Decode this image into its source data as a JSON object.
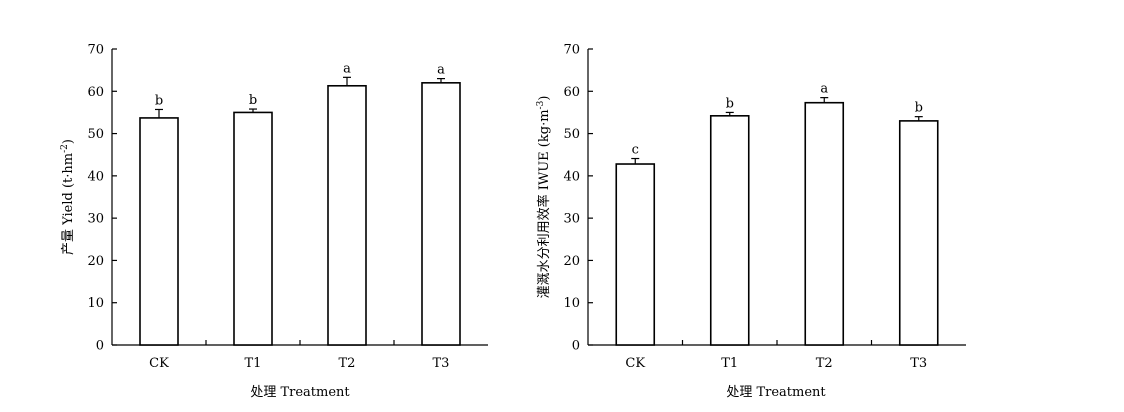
{
  "chart_data": [
    {
      "type": "bar",
      "categories": [
        "CK",
        "T1",
        "T2",
        "T3"
      ],
      "values": [
        53.7,
        55.0,
        61.3,
        62.0
      ],
      "errors": [
        2.0,
        0.8,
        2.0,
        1.0
      ],
      "significance": [
        "b",
        "b",
        "a",
        "a"
      ],
      "xlabel": "处理 Treatment",
      "ylabel": {
        "main": "产量 Yield (t·hm",
        "sup": "-2",
        "end": ")"
      },
      "ylim": [
        0,
        70
      ],
      "yticks": [
        0,
        10,
        20,
        30,
        40,
        50,
        60,
        70
      ],
      "grid": false
    },
    {
      "type": "bar",
      "categories": [
        "CK",
        "T1",
        "T2",
        "T3"
      ],
      "values": [
        42.8,
        54.2,
        57.3,
        53.0
      ],
      "errors": [
        1.3,
        0.8,
        1.2,
        1.0
      ],
      "significance": [
        "c",
        "b",
        "a",
        "b"
      ],
      "xlabel": "处理 Treatment",
      "ylabel": {
        "main": "灌溉水分利用效率 IWUE (kg·m",
        "sup": "-3",
        "end": ")"
      },
      "ylim": [
        0,
        70
      ],
      "yticks": [
        0,
        10,
        20,
        30,
        40,
        50,
        60,
        70
      ],
      "grid": false
    }
  ]
}
